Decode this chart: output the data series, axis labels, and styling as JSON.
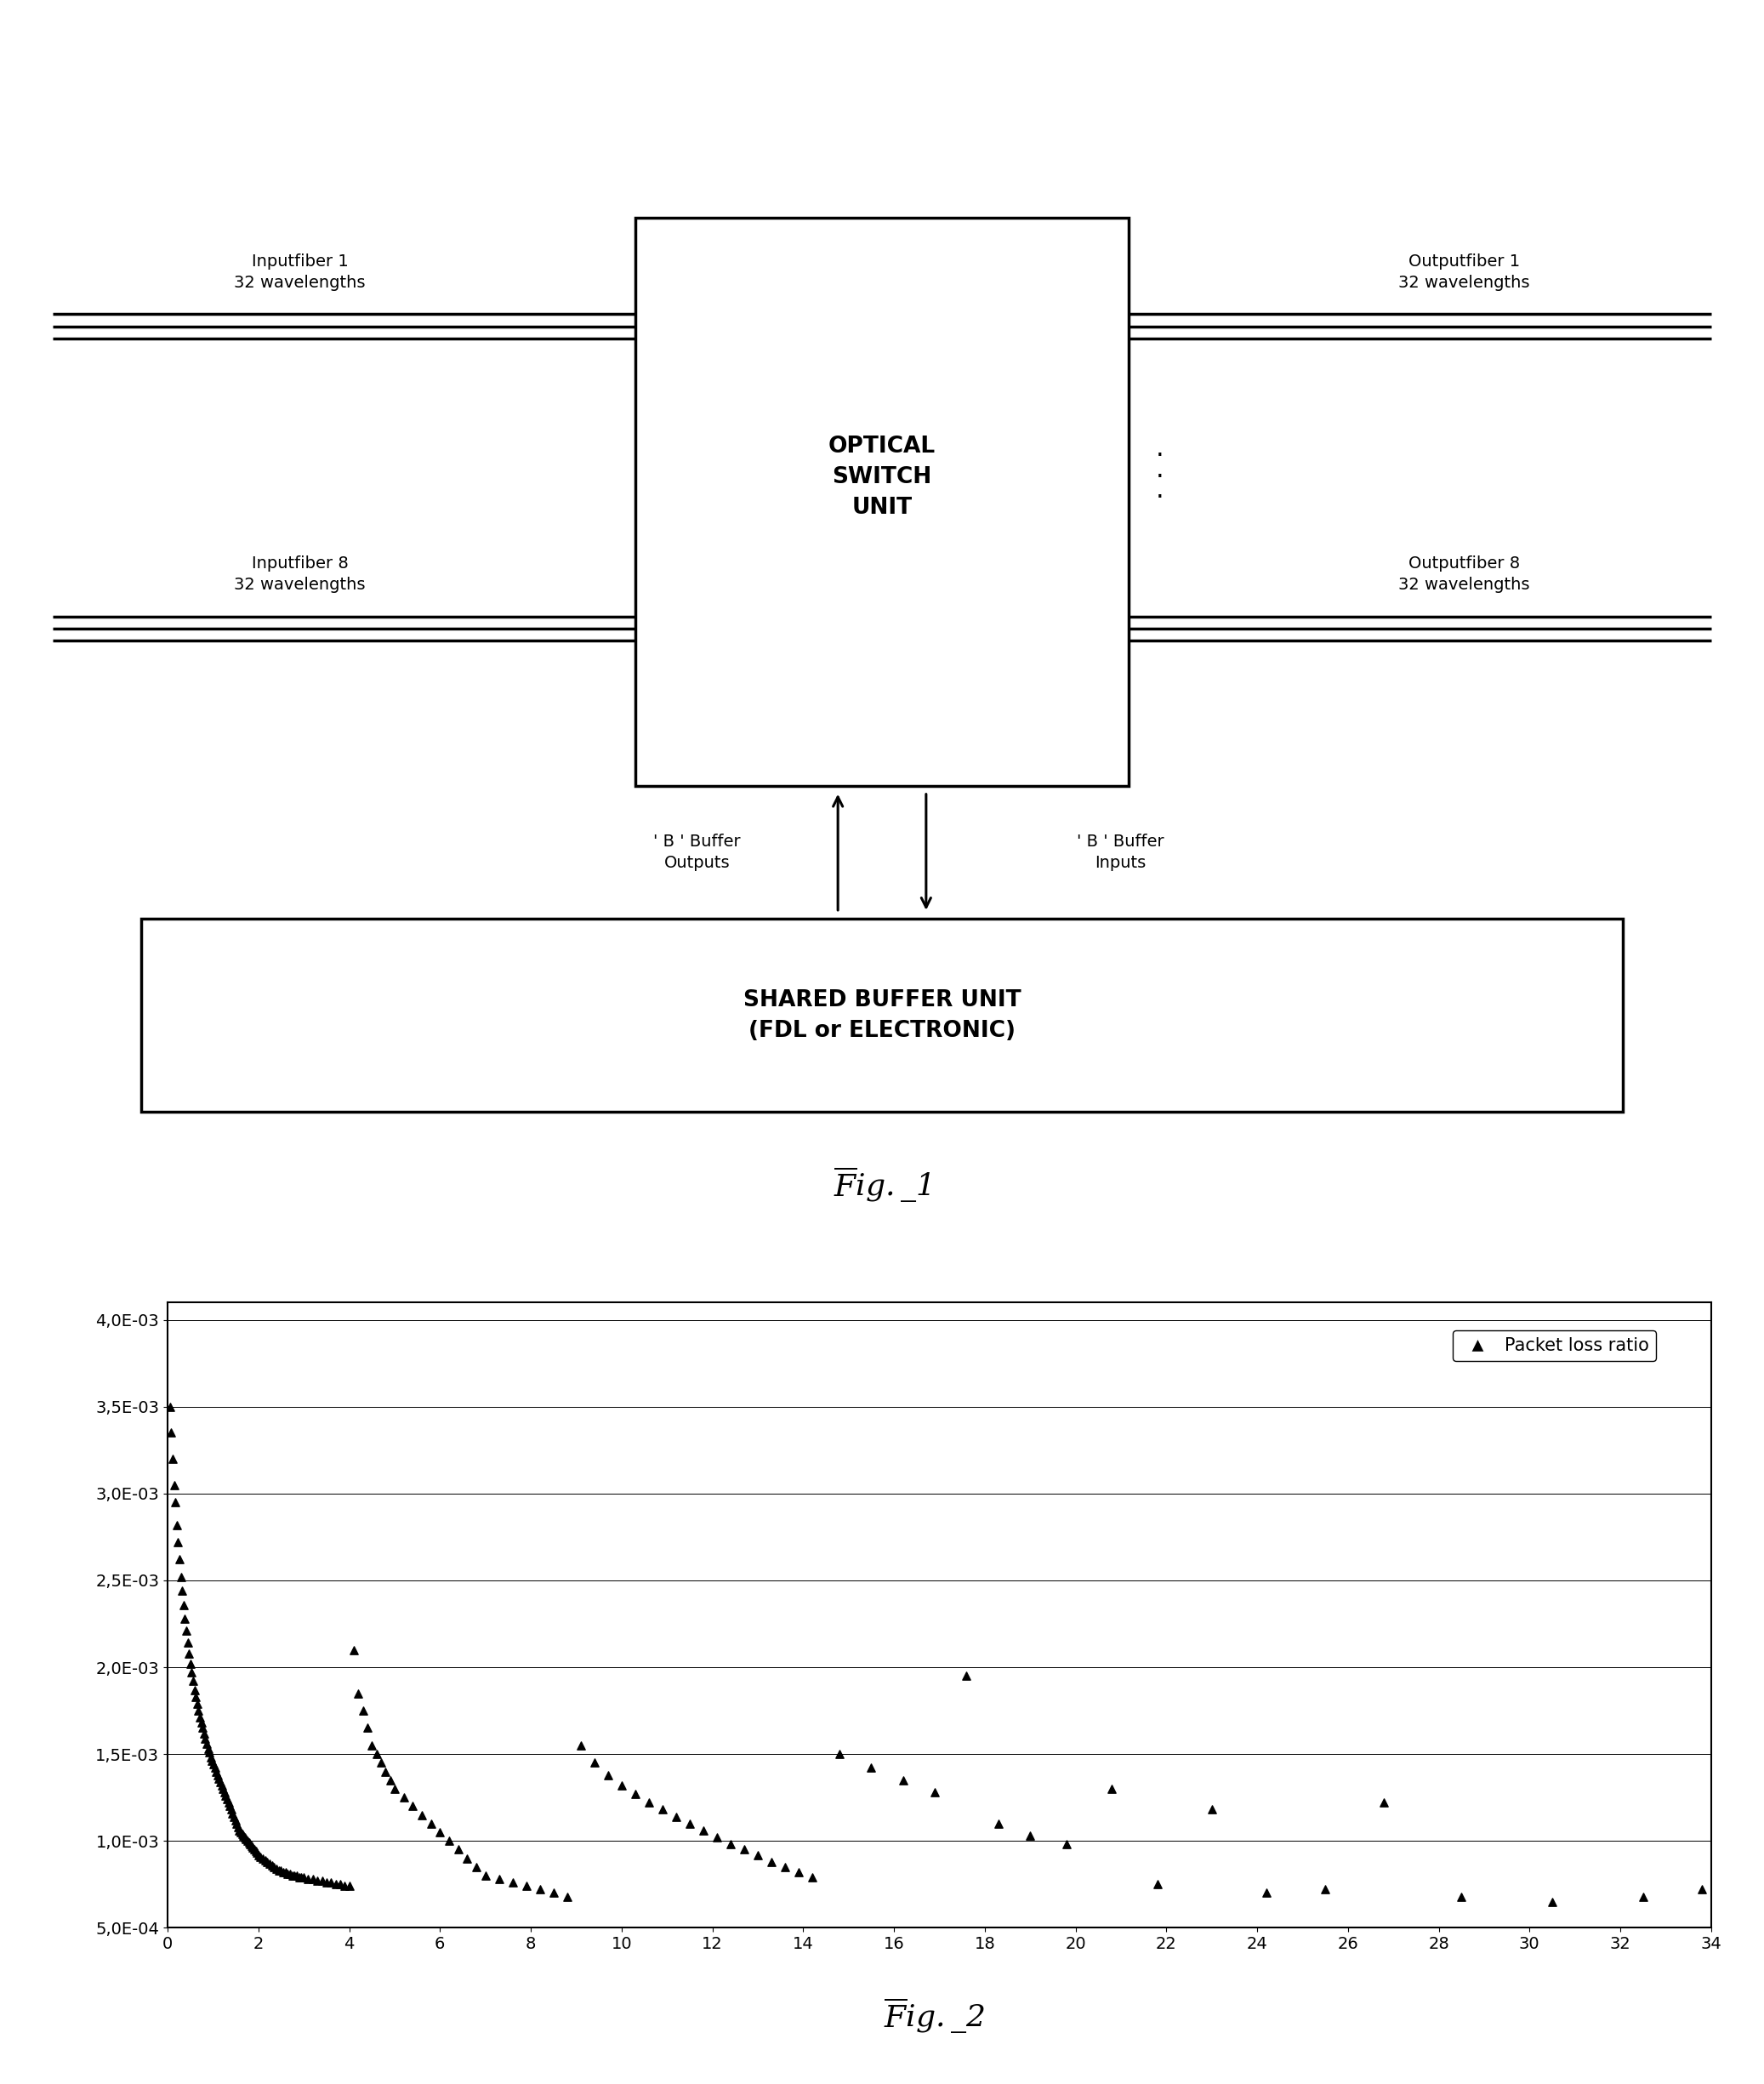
{
  "fig1": {
    "optical_switch_text": "OPTICAL\nSWITCH\nUNIT",
    "shared_buffer_text": "SHARED BUFFER UNIT\n(FDL or ELECTRONIC)",
    "input_fiber1_label": "Inputfiber 1\n32 wavelengths",
    "input_fiber8_label": "Inputfiber 8\n32 wavelengths",
    "output_fiber1_label": "Outputfiber 1\n32 wavelengths",
    "output_fiber8_label": "Outputfiber 8\n32 wavelengths",
    "buffer_outputs_label": "' B ' Buffer\nOutputs",
    "buffer_inputs_label": "' B ' Buffer\nInputs",
    "fig_caption": "Fig ._ 1"
  },
  "fig2": {
    "legend_label": "Packet loss ratio",
    "xlim": [
      0,
      34
    ],
    "ylim": [
      0.0005,
      0.0041
    ],
    "yticks": [
      0.0005,
      0.001,
      0.0015,
      0.002,
      0.0025,
      0.003,
      0.0035,
      0.004
    ],
    "ytick_labels": [
      "5,0E-04",
      "1,0E-03",
      "1,5E-03",
      "2,0E-03",
      "2,5E-03",
      "3,0E-03",
      "3,5E-03",
      "4,0E-03"
    ],
    "xticks": [
      0,
      2,
      4,
      6,
      8,
      10,
      12,
      14,
      16,
      18,
      20,
      22,
      24,
      26,
      28,
      30,
      32,
      34
    ],
    "fig_caption": "Fig ._ 2",
    "scatter_x": [
      0.05,
      0.08,
      0.11,
      0.14,
      0.17,
      0.2,
      0.23,
      0.26,
      0.29,
      0.32,
      0.35,
      0.38,
      0.41,
      0.44,
      0.47,
      0.5,
      0.53,
      0.56,
      0.59,
      0.62,
      0.65,
      0.68,
      0.71,
      0.74,
      0.77,
      0.8,
      0.83,
      0.86,
      0.89,
      0.92,
      0.95,
      0.98,
      1.01,
      1.04,
      1.07,
      1.1,
      1.13,
      1.16,
      1.19,
      1.22,
      1.25,
      1.28,
      1.31,
      1.34,
      1.37,
      1.4,
      1.43,
      1.46,
      1.49,
      1.52,
      1.55,
      1.58,
      1.61,
      1.64,
      1.67,
      1.7,
      1.73,
      1.76,
      1.79,
      1.82,
      1.85,
      1.88,
      1.91,
      1.94,
      1.97,
      2.0,
      2.05,
      2.1,
      2.15,
      2.2,
      2.25,
      2.3,
      2.35,
      2.4,
      2.45,
      2.5,
      2.55,
      2.6,
      2.65,
      2.7,
      2.75,
      2.8,
      2.85,
      2.9,
      2.95,
      3.0,
      3.1,
      3.2,
      3.3,
      3.4,
      3.5,
      3.6,
      3.7,
      3.8,
      3.9,
      4.0,
      4.1,
      4.2,
      4.3,
      4.4,
      4.5,
      4.6,
      4.7,
      4.8,
      4.9,
      5.0,
      5.2,
      5.4,
      5.6,
      5.8,
      6.0,
      6.2,
      6.4,
      6.6,
      6.8,
      7.0,
      7.3,
      7.6,
      7.9,
      8.2,
      8.5,
      8.8,
      9.1,
      9.4,
      9.7,
      10.0,
      10.3,
      10.6,
      10.9,
      11.2,
      11.5,
      11.8,
      12.1,
      12.4,
      12.7,
      13.0,
      13.3,
      13.6,
      13.9,
      14.2,
      14.8,
      15.5,
      16.2,
      16.9,
      17.6,
      18.3,
      19.0,
      19.8,
      20.8,
      21.8,
      23.0,
      24.2,
      25.5,
      26.8,
      28.5,
      30.5,
      32.5,
      33.8
    ],
    "scatter_y": [
      0.0035,
      0.00335,
      0.0032,
      0.00305,
      0.00295,
      0.00282,
      0.00272,
      0.00262,
      0.00252,
      0.00244,
      0.00236,
      0.00228,
      0.00221,
      0.00214,
      0.00208,
      0.00202,
      0.00197,
      0.00192,
      0.00187,
      0.00183,
      0.00179,
      0.00175,
      0.00171,
      0.00168,
      0.00165,
      0.00162,
      0.00159,
      0.00156,
      0.00153,
      0.00151,
      0.00148,
      0.00146,
      0.00144,
      0.00142,
      0.0014,
      0.00138,
      0.00136,
      0.00134,
      0.00132,
      0.0013,
      0.00128,
      0.00126,
      0.00124,
      0.00122,
      0.0012,
      0.00118,
      0.00116,
      0.00114,
      0.00112,
      0.0011,
      0.00108,
      0.00106,
      0.00105,
      0.00104,
      0.00103,
      0.00102,
      0.00101,
      0.001,
      0.00099,
      0.00098,
      0.00097,
      0.00096,
      0.00095,
      0.00094,
      0.00093,
      0.00092,
      0.00091,
      0.0009,
      0.00089,
      0.00088,
      0.00087,
      0.00086,
      0.00085,
      0.00084,
      0.00083,
      0.00083,
      0.00082,
      0.00082,
      0.00081,
      0.00081,
      0.0008,
      0.0008,
      0.0008,
      0.00079,
      0.00079,
      0.00079,
      0.00078,
      0.00078,
      0.00077,
      0.00077,
      0.00076,
      0.00076,
      0.00075,
      0.00075,
      0.00074,
      0.00074,
      0.0021,
      0.00185,
      0.00175,
      0.00165,
      0.00155,
      0.0015,
      0.00145,
      0.0014,
      0.00135,
      0.0013,
      0.00125,
      0.0012,
      0.00115,
      0.0011,
      0.00105,
      0.001,
      0.00095,
      0.0009,
      0.00085,
      0.0008,
      0.00078,
      0.00076,
      0.00074,
      0.00072,
      0.0007,
      0.00068,
      0.00155,
      0.00145,
      0.00138,
      0.00132,
      0.00127,
      0.00122,
      0.00118,
      0.00114,
      0.0011,
      0.00106,
      0.00102,
      0.00098,
      0.00095,
      0.00092,
      0.00088,
      0.00085,
      0.00082,
      0.00079,
      0.0015,
      0.00142,
      0.00135,
      0.00128,
      0.00195,
      0.0011,
      0.00103,
      0.00098,
      0.0013,
      0.00075,
      0.00118,
      0.0007,
      0.00072,
      0.00122,
      0.00068,
      0.00065,
      0.00068,
      0.00072
    ]
  }
}
